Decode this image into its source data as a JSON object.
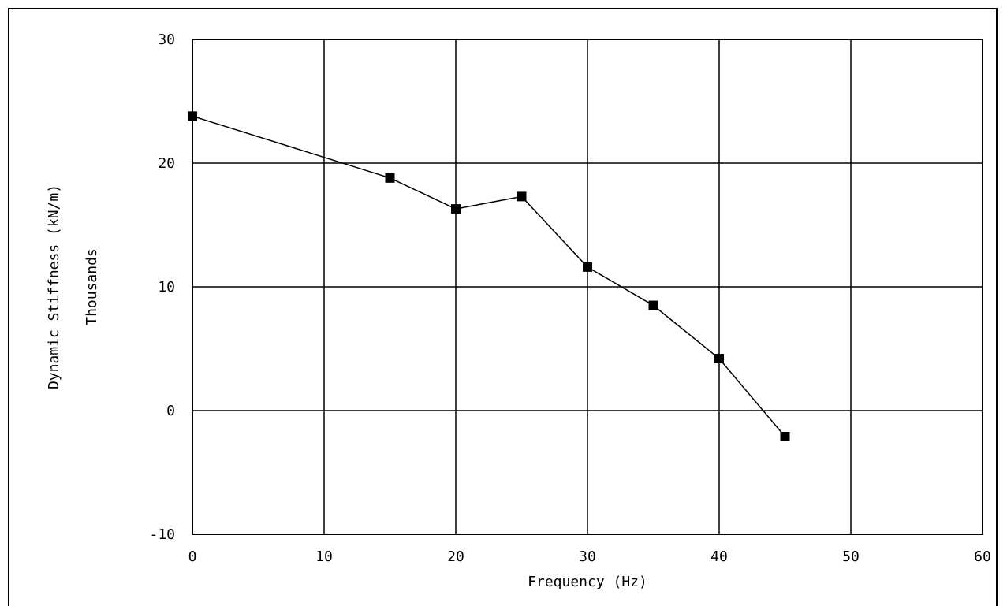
{
  "chart_data": {
    "type": "line",
    "title": "",
    "xlabel": "Frequency (Hz)",
    "ylabel": "Dynamic Stiffness (kN/m)",
    "ylabel_secondary": "Thousands",
    "xlim": [
      0,
      60
    ],
    "ylim": [
      -10,
      30
    ],
    "x_ticks": [
      0,
      10,
      20,
      30,
      40,
      50,
      60
    ],
    "y_ticks": [
      -10,
      0,
      10,
      20,
      30
    ],
    "x_tick_labels": [
      "0",
      "10",
      "20",
      "30",
      "40",
      "50",
      "60"
    ],
    "y_tick_labels": [
      "-10",
      "0",
      "10",
      "20",
      "30"
    ],
    "grid": true,
    "legend": "none",
    "series": [
      {
        "color": "#000000",
        "marker": "square",
        "x": [
          0,
          15,
          20,
          25,
          30,
          35,
          40,
          45
        ],
        "y": [
          23.8,
          18.8,
          16.3,
          17.3,
          11.6,
          8.5,
          4.2,
          -2.1
        ]
      }
    ]
  }
}
